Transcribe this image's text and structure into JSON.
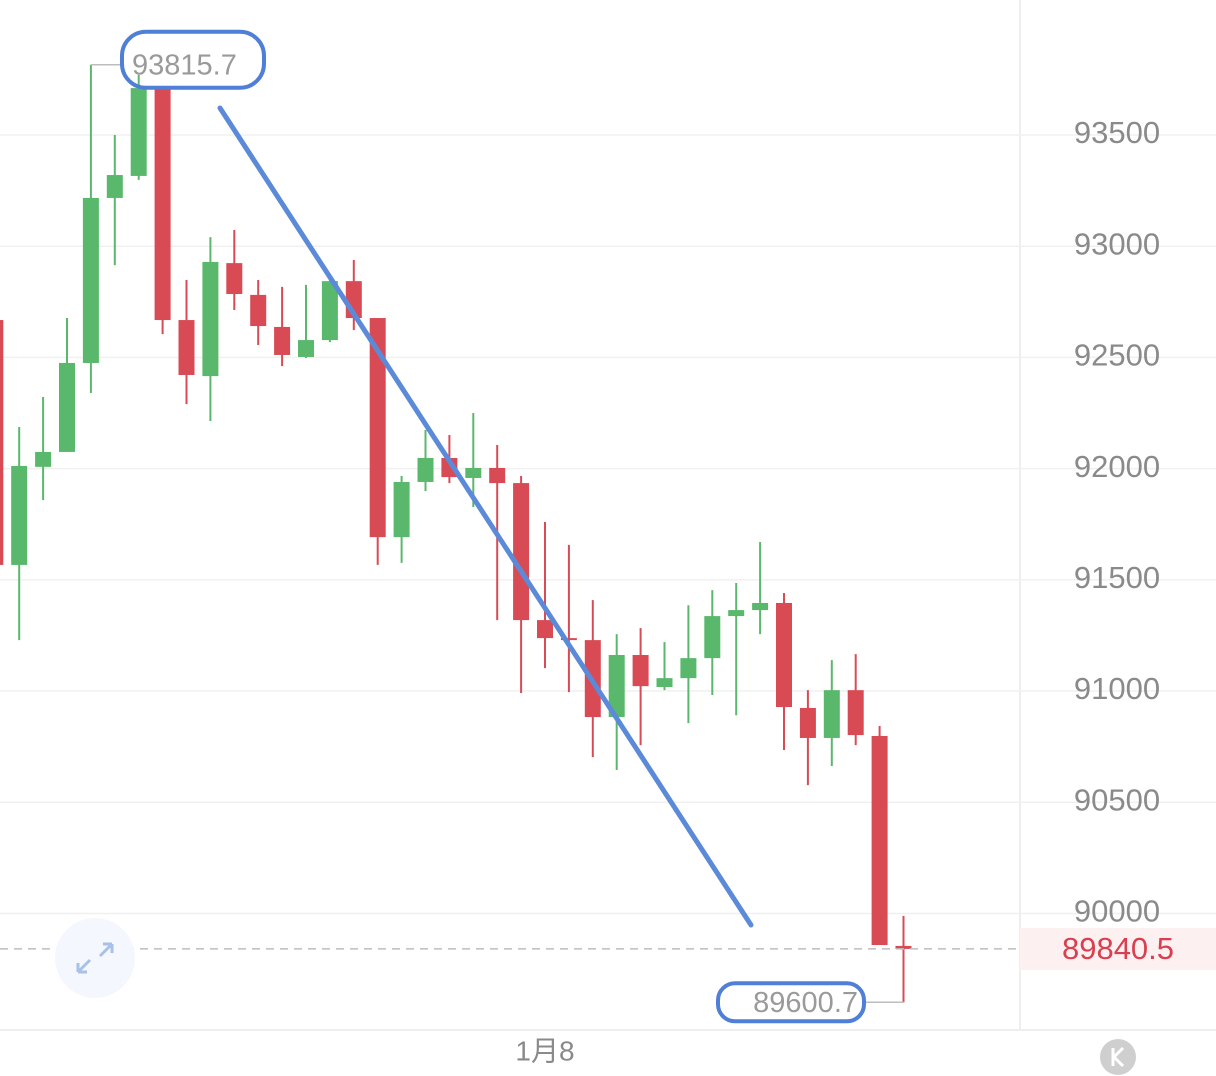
{
  "chart_data": {
    "type": "candlestick",
    "categories": [
      null,
      null,
      null,
      null,
      null,
      null,
      null,
      null,
      null,
      null,
      null,
      null,
      null,
      null,
      null,
      null,
      null,
      null,
      null,
      null,
      null,
      null,
      null,
      "1月8",
      null,
      null,
      null,
      null,
      null,
      null,
      null,
      null,
      null,
      null,
      null,
      null,
      null,
      null,
      null
    ],
    "open": [
      92668,
      91567,
      92008,
      92075,
      92475,
      93217,
      93316,
      93711,
      92668,
      92416,
      92924,
      92781,
      92637,
      92502,
      92578,
      92843,
      92677,
      91692,
      91940,
      92048,
      91958,
      92003,
      91935,
      91319,
      91238,
      91229,
      90883,
      91162,
      91018,
      91058,
      91148,
      91337,
      91364,
      91396,
      90924,
      90789,
      91004,
      90798,
      89854
    ],
    "high": [
      92668,
      92187,
      92322,
      92677,
      93815.7,
      93500,
      93770,
      93711,
      92848,
      93041,
      93073,
      92848,
      92817,
      92826,
      92866,
      92938,
      92677,
      91967,
      92174,
      92151,
      92250,
      92106,
      91967,
      91760,
      91657,
      91409,
      91256,
      91283,
      91220,
      91386,
      91454,
      91486,
      91670,
      91441,
      91004,
      91139,
      91166,
      90843,
      89989
    ],
    "low": [
      91567,
      91229,
      91859,
      92075,
      92340,
      92915,
      93298,
      92605,
      92290,
      92214,
      92713,
      92556,
      92461,
      92497,
      92569,
      92623,
      91567,
      91576,
      91899,
      91935,
      91827,
      91319,
      90991,
      91103,
      90995,
      90703,
      90645,
      90757,
      91004,
      90856,
      90982,
      90891,
      91256,
      90735,
      90577,
      90663,
      90757,
      89858,
      89600.7
    ],
    "close": [
      91567,
      92012,
      92075,
      92475,
      93217,
      93320,
      93711,
      92668,
      92421,
      92929,
      92785,
      92641,
      92511,
      92578,
      92843,
      92677,
      91692,
      91940,
      92048,
      91962,
      92003,
      91935,
      91319,
      91238,
      91229,
      90883,
      91162,
      91022,
      91058,
      91148,
      91337,
      91364,
      91396,
      90928,
      90789,
      91004,
      90802,
      89858,
      89840.5
    ],
    "up_color": "#5ab86c",
    "down_color": "#d84b55",
    "ylim": [
      89476,
      94107
    ],
    "yticks": [
      90000,
      90500,
      91000,
      91500,
      92000,
      92500,
      93000,
      93500
    ],
    "grid": true,
    "annotations": {
      "max": 93815.7,
      "min": 89600.7,
      "last": 89840.5
    }
  }
}
